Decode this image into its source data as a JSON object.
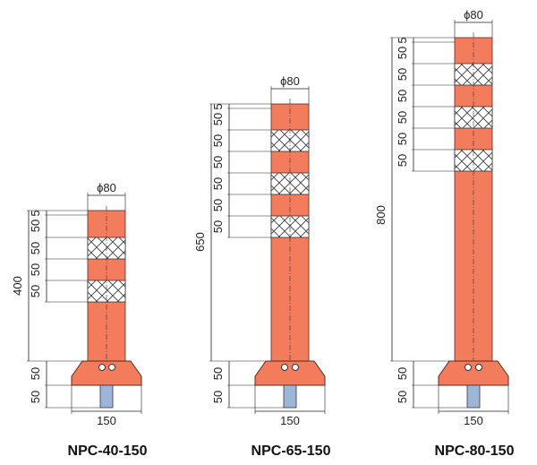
{
  "posts": [
    {
      "model": "NPC-40-150",
      "diameter_label": "ϕ80",
      "height_label": "400",
      "base_width_label": "150",
      "segments": [
        "5",
        "50",
        "50",
        "50",
        "50"
      ],
      "base_labels": [
        "50",
        "50"
      ]
    },
    {
      "model": "NPC-65-150",
      "diameter_label": "ϕ80",
      "height_label": "650",
      "base_width_label": "150",
      "segments": [
        "5",
        "50",
        "50",
        "50",
        "50",
        "50",
        "50"
      ],
      "base_labels": [
        "50",
        "50"
      ]
    },
    {
      "model": "NPC-80-150",
      "diameter_label": "ϕ80",
      "height_label": "800",
      "base_width_label": "150",
      "segments": [
        "5",
        "50",
        "50",
        "50",
        "50",
        "50",
        "50"
      ],
      "base_labels": [
        "50",
        "50"
      ]
    }
  ],
  "colors": {
    "post": "#f27c5c",
    "anchor": "#9db6d8",
    "line": "#222222"
  }
}
